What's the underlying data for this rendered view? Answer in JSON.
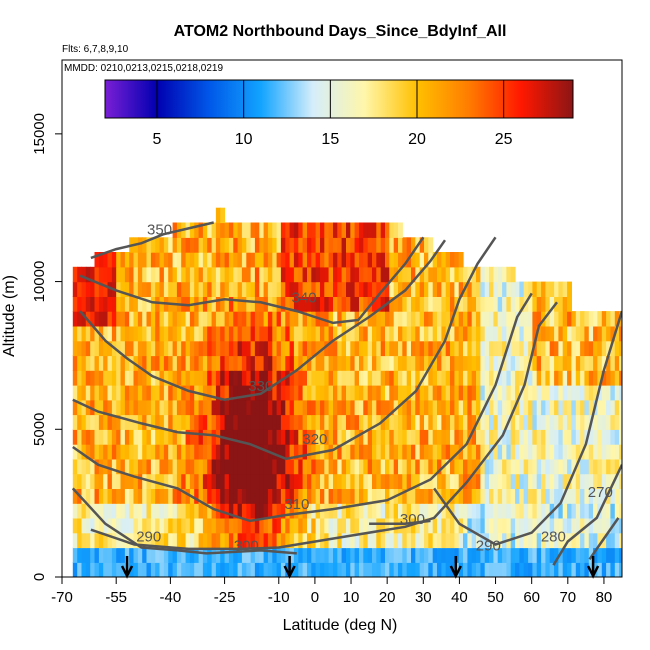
{
  "chart_data": {
    "type": "heatmap",
    "title": "ATOM2 Northbound Days_Since_BdyInf_All",
    "flights_label": "Flts: 6,7,8,9,10",
    "dates_label": "MMDD: 0210,0213,0215,0218,0219",
    "xlabel": "Latitude (deg N)",
    "ylabel": "Altitude (m)",
    "xlim": [
      -70,
      85
    ],
    "ylim": [
      0,
      17500
    ],
    "x_ticks": [
      -70,
      -55,
      -40,
      -25,
      -10,
      0,
      10,
      20,
      30,
      40,
      50,
      60,
      70,
      80
    ],
    "y_ticks": [
      0,
      5000,
      10000,
      15000
    ],
    "colorbar": {
      "range": [
        2,
        29
      ],
      "ticks": [
        5,
        10,
        15,
        20,
        25
      ],
      "colors": [
        "#7a1fd6",
        "#0000b0",
        "#0057e8",
        "#12a4ff",
        "#d5eefa",
        "#fff6a8",
        "#ffc000",
        "#ff7c00",
        "#ff1800",
        "#8b1515"
      ]
    },
    "grid": false,
    "legend": "colorbar top inside plot",
    "theta_contours": [
      {
        "level": 270,
        "points": [
          [
            84,
            2000
          ],
          [
            80,
            1300
          ],
          [
            76,
            600
          ]
        ],
        "label_at": [
          79,
          2700
        ]
      },
      {
        "level": 280,
        "points": [
          [
            85,
            3800
          ],
          [
            78,
            2000
          ],
          [
            70,
            1200
          ],
          [
            66,
            400
          ]
        ],
        "label_at": [
          66,
          1200
        ]
      },
      {
        "level": 290,
        "points": [
          [
            -67,
            3000
          ],
          [
            -58,
            1800
          ],
          [
            -48,
            1000
          ],
          [
            -38,
            900
          ],
          [
            -30,
            800
          ],
          [
            -15,
            900
          ],
          [
            -5,
            800
          ]
        ],
        "label_at": [
          -46,
          1200
        ]
      },
      {
        "level": 290,
        "points": [
          [
            33,
            3000
          ],
          [
            40,
            1800
          ],
          [
            50,
            1100
          ],
          [
            60,
            1500
          ],
          [
            68,
            2500
          ],
          [
            75,
            4500
          ],
          [
            80,
            7000
          ],
          [
            85,
            9000
          ]
        ],
        "label_at": [
          48,
          900
        ]
      },
      {
        "level": 300,
        "points": [
          [
            -62,
            1600
          ],
          [
            -50,
            1100
          ],
          [
            -35,
            950
          ],
          [
            -20,
            950
          ],
          [
            -10,
            1000
          ],
          [
            10,
            1400
          ],
          [
            25,
            1700
          ],
          [
            33,
            2000
          ],
          [
            42,
            3200
          ],
          [
            52,
            4800
          ],
          [
            58,
            6500
          ],
          [
            62,
            8500
          ],
          [
            67,
            9300
          ]
        ],
        "label_at": [
          -19,
          900
        ]
      },
      {
        "level": 300,
        "points": [
          [
            15,
            1800
          ],
          [
            25,
            1800
          ],
          [
            32,
            1900
          ]
        ],
        "label_at": [
          27,
          1800
        ]
      },
      {
        "level": 310,
        "points": [
          [
            -67,
            4400
          ],
          [
            -60,
            3800
          ],
          [
            -50,
            3400
          ],
          [
            -38,
            3000
          ],
          [
            -28,
            2300
          ],
          [
            -18,
            1900
          ],
          [
            -8,
            2100
          ],
          [
            5,
            2300
          ],
          [
            20,
            2600
          ],
          [
            32,
            3300
          ],
          [
            42,
            4500
          ],
          [
            50,
            6500
          ],
          [
            56,
            8800
          ],
          [
            60,
            9600
          ]
        ],
        "label_at": [
          -5,
          2300
        ]
      },
      {
        "level": 320,
        "points": [
          [
            -67,
            6000
          ],
          [
            -60,
            5600
          ],
          [
            -48,
            5200
          ],
          [
            -38,
            4900
          ],
          [
            -28,
            4800
          ],
          [
            -18,
            4500
          ],
          [
            -8,
            4000
          ],
          [
            5,
            4300
          ],
          [
            18,
            5200
          ],
          [
            28,
            6300
          ],
          [
            36,
            8000
          ],
          [
            40,
            9400
          ],
          [
            45,
            10600
          ],
          [
            50,
            11500
          ]
        ],
        "label_at": [
          0,
          4500
        ]
      },
      {
        "level": 330,
        "points": [
          [
            -65,
            9000
          ],
          [
            -58,
            8000
          ],
          [
            -52,
            7400
          ],
          [
            -45,
            6800
          ],
          [
            -35,
            6300
          ],
          [
            -25,
            6000
          ],
          [
            -15,
            6200
          ],
          [
            -5,
            7000
          ],
          [
            5,
            8000
          ],
          [
            15,
            8800
          ],
          [
            25,
            9700
          ],
          [
            32,
            10700
          ],
          [
            36,
            11400
          ]
        ],
        "label_at": [
          -15,
          6300
        ]
      },
      {
        "level": 340,
        "points": [
          [
            -65,
            10200
          ],
          [
            -55,
            9700
          ],
          [
            -45,
            9300
          ],
          [
            -35,
            9200
          ],
          [
            -25,
            9400
          ],
          [
            -15,
            9300
          ],
          [
            -5,
            9000
          ],
          [
            5,
            8600
          ],
          [
            12,
            8700
          ],
          [
            18,
            9600
          ],
          [
            25,
            10600
          ],
          [
            30,
            11500
          ]
        ],
        "label_at": [
          -3,
          9300
        ]
      },
      {
        "level": 350,
        "points": [
          [
            -62,
            10800
          ],
          [
            -55,
            11100
          ],
          [
            -48,
            11300
          ],
          [
            -42,
            11600
          ],
          [
            -35,
            11800
          ],
          [
            -28,
            12000
          ]
        ],
        "label_at": [
          -43,
          11600
        ]
      }
    ],
    "flight_markers_lat": [
      -52,
      -7,
      39,
      77
    ]
  }
}
